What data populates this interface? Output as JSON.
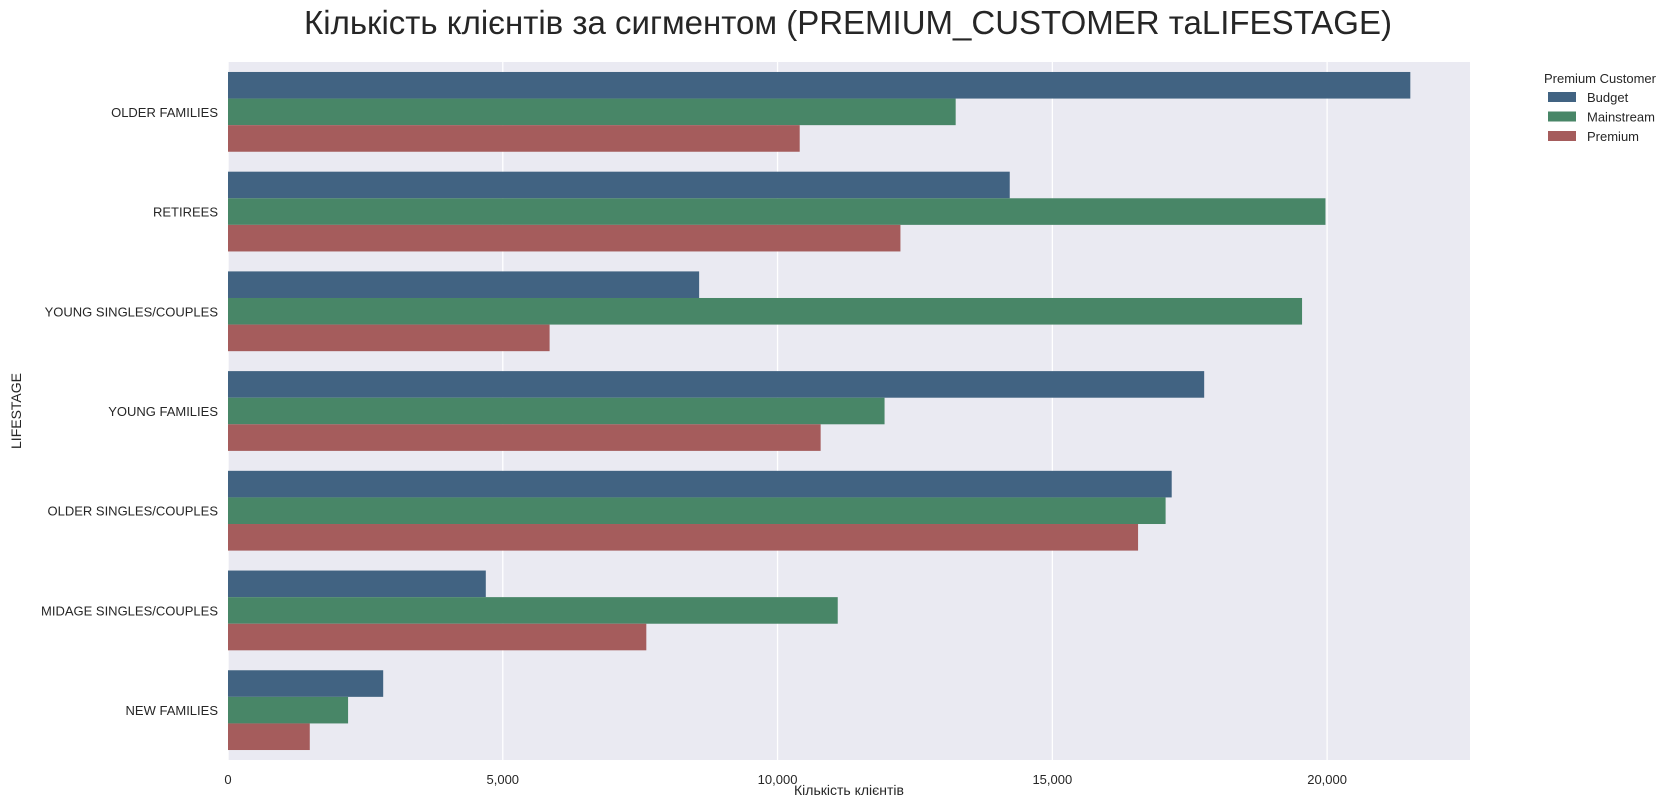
{
  "chart_data": {
    "type": "bar",
    "orientation": "horizontal",
    "title": "Кількість клієнтів за сигментом (PREMIUM_CUSTOMER таLIFESTAGE)",
    "xlabel": "Кількість клієнтів",
    "ylabel": "LIFESTAGE",
    "categories": [
      "OLDER FAMILIES",
      "RETIREES",
      "YOUNG SINGLES/COUPLES",
      "YOUNG FAMILIES",
      "OLDER SINGLES/COUPLES",
      "MIDAGE SINGLES/COUPLES",
      "NEW FAMILIES"
    ],
    "series": [
      {
        "name": "Budget",
        "color": "#416382",
        "values": [
          21514,
          14225,
          8573,
          17763,
          17172,
          4691,
          2824
        ]
      },
      {
        "name": "Mainstream",
        "color": "#488667",
        "values": [
          13241,
          19970,
          19544,
          11947,
          17061,
          11095,
          2185
        ]
      },
      {
        "name": "Premium",
        "color": "#a55c5c",
        "values": [
          10403,
          12236,
          5852,
          10784,
          16560,
          7612,
          1488
        ]
      }
    ],
    "xlim": [
      0,
      22600
    ],
    "xticks": [
      0,
      5000,
      10000,
      15000,
      20000
    ],
    "xtick_labels": [
      "0",
      "5,000",
      "10,000",
      "15,000",
      "20,000"
    ],
    "grid": true,
    "legend": {
      "title": "Premium Customer",
      "placement": "outside-top-right"
    },
    "background_color": "#eaeaf2"
  }
}
